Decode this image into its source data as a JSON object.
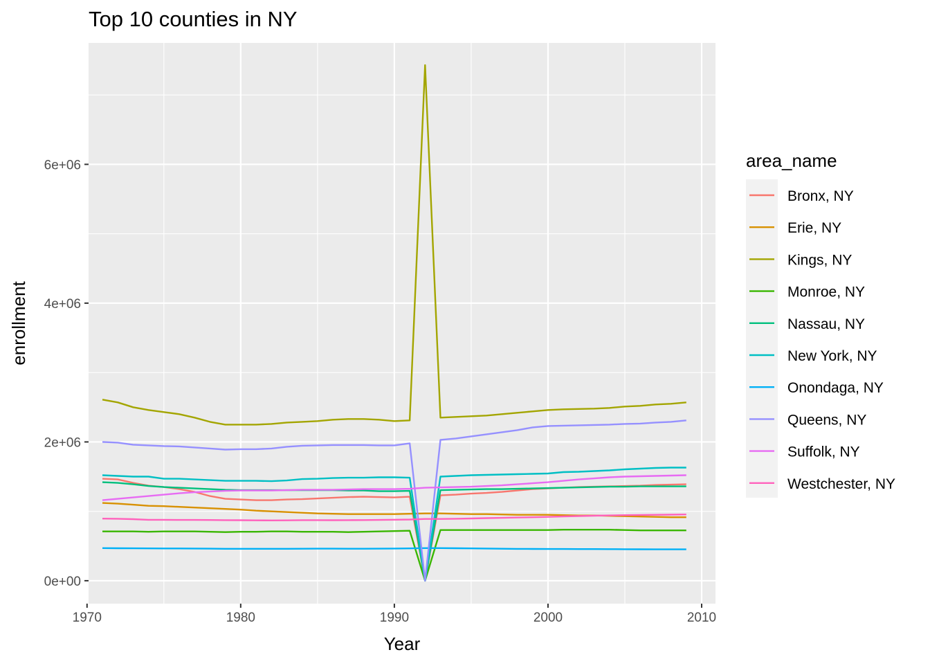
{
  "chart_data": {
    "type": "line",
    "title": "Top 10 counties in NY",
    "xlabel": "Year",
    "ylabel": "enrollment",
    "xlim": [
      1970.1,
      2010.9
    ],
    "ylim": [
      -330000,
      7750000
    ],
    "x_ticks": [
      1970,
      1980,
      1990,
      2000,
      2010
    ],
    "x_tick_labels": [
      "1970",
      "1980",
      "1990",
      "2000",
      "2010"
    ],
    "y_ticks": [
      0,
      2000000,
      4000000,
      6000000
    ],
    "y_tick_labels": [
      "0e+00",
      "2e+06",
      "4e+06",
      "6e+06"
    ],
    "grid": true,
    "legend": {
      "title": "area_name",
      "position": "right"
    },
    "x": [
      1971,
      1972,
      1973,
      1974,
      1975,
      1976,
      1977,
      1978,
      1979,
      1980,
      1981,
      1982,
      1983,
      1984,
      1985,
      1986,
      1987,
      1988,
      1989,
      1990,
      1991,
      1992,
      1993,
      1994,
      1995,
      1996,
      1997,
      1998,
      1999,
      2000,
      2001,
      2002,
      2003,
      2004,
      2005,
      2006,
      2007,
      2008,
      2009
    ],
    "series": [
      {
        "name": "Bronx, NY",
        "color": "#F8766D",
        "values": [
          1470000,
          1460000,
          1410000,
          1370000,
          1350000,
          1320000,
          1280000,
          1220000,
          1180000,
          1170000,
          1160000,
          1160000,
          1170000,
          1175000,
          1185000,
          1195000,
          1205000,
          1210000,
          1205000,
          1200000,
          1210000,
          0,
          1230000,
          1240000,
          1255000,
          1265000,
          1280000,
          1300000,
          1320000,
          1330000,
          1340000,
          1350000,
          1355000,
          1360000,
          1365000,
          1370000,
          1380000,
          1385000,
          1390000
        ]
      },
      {
        "name": "Erie, NY",
        "color": "#D89000",
        "values": [
          1120000,
          1110000,
          1095000,
          1080000,
          1075000,
          1065000,
          1055000,
          1045000,
          1035000,
          1025000,
          1010000,
          1000000,
          990000,
          980000,
          970000,
          965000,
          960000,
          960000,
          960000,
          960000,
          965000,
          970000,
          970000,
          965000,
          960000,
          960000,
          955000,
          950000,
          950000,
          950000,
          945000,
          940000,
          940000,
          935000,
          930000,
          925000,
          920000,
          915000,
          915000
        ]
      },
      {
        "name": "Kings, NY",
        "color": "#A3A500",
        "values": [
          2610000,
          2570000,
          2500000,
          2460000,
          2430000,
          2400000,
          2350000,
          2290000,
          2250000,
          2250000,
          2250000,
          2260000,
          2280000,
          2290000,
          2300000,
          2320000,
          2330000,
          2330000,
          2320000,
          2300000,
          2310000,
          7430000,
          2350000,
          2360000,
          2370000,
          2380000,
          2400000,
          2420000,
          2440000,
          2460000,
          2470000,
          2475000,
          2480000,
          2490000,
          2510000,
          2520000,
          2540000,
          2550000,
          2570000
        ]
      },
      {
        "name": "Monroe, NY",
        "color": "#39B600",
        "values": [
          710000,
          710000,
          710000,
          705000,
          710000,
          710000,
          710000,
          705000,
          700000,
          705000,
          705000,
          710000,
          710000,
          705000,
          705000,
          705000,
          700000,
          705000,
          710000,
          715000,
          720000,
          0,
          730000,
          730000,
          730000,
          730000,
          730000,
          730000,
          730000,
          730000,
          735000,
          735000,
          735000,
          735000,
          730000,
          725000,
          725000,
          725000,
          725000
        ]
      },
      {
        "name": "Nassau, NY",
        "color": "#00BF7D",
        "values": [
          1420000,
          1410000,
          1390000,
          1365000,
          1350000,
          1340000,
          1330000,
          1320000,
          1310000,
          1305000,
          1305000,
          1305000,
          1305000,
          1305000,
          1305000,
          1305000,
          1300000,
          1300000,
          1290000,
          1290000,
          1295000,
          0,
          1305000,
          1310000,
          1315000,
          1320000,
          1320000,
          1325000,
          1330000,
          1335000,
          1340000,
          1345000,
          1350000,
          1355000,
          1355000,
          1360000,
          1360000,
          1360000,
          1360000
        ]
      },
      {
        "name": "New York, NY",
        "color": "#00BFC4",
        "values": [
          1520000,
          1510000,
          1500000,
          1500000,
          1470000,
          1470000,
          1460000,
          1450000,
          1440000,
          1440000,
          1440000,
          1435000,
          1445000,
          1465000,
          1470000,
          1480000,
          1485000,
          1485000,
          1490000,
          1490000,
          1485000,
          0,
          1500000,
          1510000,
          1520000,
          1525000,
          1530000,
          1535000,
          1540000,
          1545000,
          1565000,
          1570000,
          1580000,
          1590000,
          1605000,
          1615000,
          1625000,
          1630000,
          1630000
        ]
      },
      {
        "name": "Onondaga, NY",
        "color": "#00B0F6",
        "values": [
          470000,
          468000,
          467000,
          466000,
          465000,
          465000,
          464000,
          462000,
          460000,
          460000,
          460000,
          460000,
          460000,
          461000,
          462000,
          462000,
          461000,
          461000,
          462000,
          464000,
          466000,
          470000,
          470000,
          468000,
          466000,
          464000,
          461000,
          459000,
          458000,
          457000,
          457000,
          456000,
          456000,
          455000,
          454000,
          453000,
          452000,
          452000,
          452000
        ]
      },
      {
        "name": "Queens, NY",
        "color": "#9590FF",
        "values": [
          2000000,
          1990000,
          1960000,
          1950000,
          1940000,
          1935000,
          1920000,
          1905000,
          1890000,
          1895000,
          1895000,
          1905000,
          1930000,
          1945000,
          1950000,
          1955000,
          1955000,
          1955000,
          1950000,
          1950000,
          1980000,
          0,
          2030000,
          2050000,
          2080000,
          2110000,
          2140000,
          2170000,
          2210000,
          2230000,
          2235000,
          2240000,
          2245000,
          2250000,
          2260000,
          2265000,
          2280000,
          2290000,
          2310000
        ]
      },
      {
        "name": "Suffolk, NY",
        "color": "#E76BF3",
        "values": [
          1160000,
          1180000,
          1200000,
          1220000,
          1240000,
          1260000,
          1275000,
          1285000,
          1295000,
          1300000,
          1300000,
          1300000,
          1305000,
          1310000,
          1310000,
          1310000,
          1315000,
          1320000,
          1320000,
          1320000,
          1325000,
          1340000,
          1345000,
          1350000,
          1355000,
          1365000,
          1375000,
          1390000,
          1405000,
          1420000,
          1440000,
          1460000,
          1475000,
          1490000,
          1500000,
          1505000,
          1510000,
          1515000,
          1520000
        ]
      },
      {
        "name": "Westchester, NY",
        "color": "#FF62BC",
        "values": [
          895000,
          893000,
          887000,
          878000,
          878000,
          876000,
          876000,
          875000,
          873000,
          872000,
          870000,
          869000,
          870000,
          873000,
          873000,
          872000,
          873000,
          874000,
          876000,
          879000,
          882000,
          890000,
          890000,
          893000,
          897000,
          902000,
          906000,
          911000,
          915000,
          920000,
          927000,
          932000,
          937000,
          941000,
          945000,
          948000,
          950000,
          952000,
          955000
        ]
      }
    ]
  }
}
